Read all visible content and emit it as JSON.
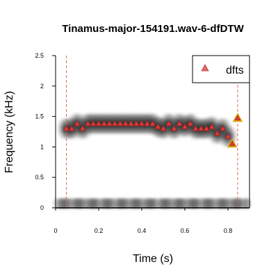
{
  "chart_data": {
    "type": "scatter",
    "title": "Tinamus-major-154191.wav-6-dfDTW",
    "xlabel": "Time (s)",
    "ylabel": "Frequency (kHz)",
    "xlim": [
      0,
      0.9
    ],
    "ylim": [
      0,
      2.5
    ],
    "x_ticks": [
      "0",
      "0.2",
      "0.4",
      "0.6",
      "0.8"
    ],
    "y_ticks": [
      "0",
      "0.5",
      "1",
      "1.5",
      "2",
      "2.5"
    ],
    "legend": {
      "position": "top-right",
      "entries": [
        "dfts"
      ]
    },
    "grid": false,
    "reference_lines_x": [
      0.05,
      0.845
    ],
    "colors": {
      "points": "#e03a3a",
      "highlight": "#f5c400",
      "ref_line": "#d96a5a"
    },
    "series": [
      {
        "name": "dfts",
        "x": [
          0.05,
          0.075,
          0.1,
          0.125,
          0.15,
          0.175,
          0.2,
          0.225,
          0.25,
          0.275,
          0.3,
          0.325,
          0.35,
          0.375,
          0.4,
          0.425,
          0.45,
          0.475,
          0.5,
          0.525,
          0.55,
          0.575,
          0.6,
          0.625,
          0.65,
          0.675,
          0.7,
          0.725,
          0.75,
          0.775,
          0.8,
          0.82,
          0.845
        ],
        "y": [
          1.3,
          1.3,
          1.38,
          1.3,
          1.38,
          1.38,
          1.38,
          1.38,
          1.38,
          1.38,
          1.38,
          1.38,
          1.38,
          1.38,
          1.38,
          1.38,
          1.38,
          1.33,
          1.3,
          1.38,
          1.3,
          1.38,
          1.33,
          1.38,
          1.3,
          1.3,
          1.3,
          1.33,
          1.22,
          1.3,
          1.17,
          1.05,
          1.47
        ]
      }
    ],
    "highlighted_points": [
      {
        "x": 0.82,
        "y": 1.05
      },
      {
        "x": 0.845,
        "y": 1.47
      }
    ]
  }
}
